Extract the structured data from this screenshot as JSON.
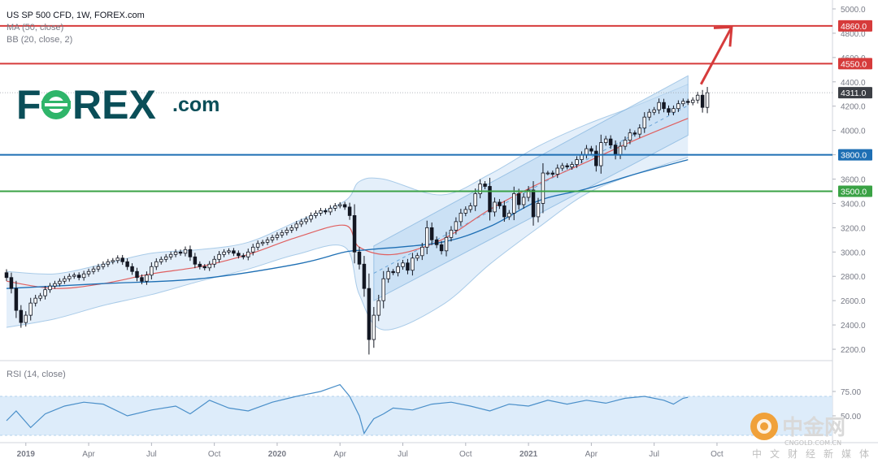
{
  "header": {
    "title": "US SP 500 CFD, 1W, FOREX.com",
    "ma_label": "MA (50, close)",
    "bb_label": "BB (20, close, 2)",
    "rsi_label": "RSI (14, close)"
  },
  "logo": {
    "brand": "F",
    "brand_rest": "REX",
    "suffix": ".com"
  },
  "watermark": {
    "big": "中金网",
    "small": "CNGOLD.COM.CN",
    "tagline": "中文财经新媒体"
  },
  "colors": {
    "bull": "#ffffff",
    "bear": "#131722",
    "ma": "#1e6fb4",
    "bb_basis": "#e06060",
    "bb_fill": "#dbeaf8",
    "channel_fill": "#bcd9f2",
    "resistance": "#d63b3b",
    "level_3800": "#1e6fb4",
    "level_3500": "#3aa245",
    "rsi_line": "#4a8fc9",
    "rsi_band": "#d9eaf9"
  },
  "chart_data": {
    "type": "candlestick",
    "title": "US SP 500 CFD, 1W, FOREX.com",
    "y_axis": {
      "ticks": [
        2200,
        2400,
        2600,
        2800,
        3000,
        3200,
        3400,
        3600,
        3800,
        4000,
        4200,
        4400,
        4600,
        4800,
        5000
      ],
      "range": [
        2120,
        5060
      ]
    },
    "x_axis": {
      "labels": [
        "2019",
        "Apr",
        "Jul",
        "Oct",
        "2020",
        "Apr",
        "Jul",
        "Oct",
        "2021",
        "Apr",
        "Jul",
        "Oct"
      ],
      "start": "2018-12",
      "end": "2021-10"
    },
    "levels": [
      {
        "value": 4860.0,
        "label": "4860.0",
        "role": "target"
      },
      {
        "value": 4550.0,
        "label": "4550.0",
        "role": "resistance"
      },
      {
        "value": 4311.0,
        "label": "4311.0",
        "role": "last"
      },
      {
        "value": 3800.0,
        "label": "3800.0",
        "role": "support"
      },
      {
        "value": 3500.0,
        "label": "3500.0",
        "role": "support"
      }
    ],
    "closes": [
      2790,
      2700,
      2520,
      2420,
      2480,
      2580,
      2620,
      2640,
      2690,
      2720,
      2740,
      2760,
      2780,
      2800,
      2810,
      2790,
      2820,
      2840,
      2860,
      2880,
      2900,
      2920,
      2930,
      2950,
      2920,
      2880,
      2840,
      2790,
      2760,
      2810,
      2880,
      2920,
      2940,
      2960,
      2980,
      3000,
      2990,
      3020,
      2960,
      2900,
      2880,
      2870,
      2900,
      2940,
      2980,
      3000,
      3010,
      2990,
      2970,
      2960,
      3000,
      3040,
      3070,
      3080,
      3100,
      3120,
      3140,
      3160,
      3180,
      3200,
      3230,
      3250,
      3270,
      3300,
      3320,
      3340,
      3330,
      3360,
      3380,
      3390,
      3370,
      3300,
      3000,
      2900,
      2700,
      2280,
      2480,
      2600,
      2780,
      2840,
      2830,
      2880,
      2910,
      2850,
      2950,
      2970,
      3040,
      3200,
      3100,
      3060,
      3010,
      3120,
      3180,
      3250,
      3320,
      3350,
      3380,
      3480,
      3560,
      3540,
      3330,
      3410,
      3380,
      3290,
      3320,
      3480,
      3390,
      3450,
      3510,
      3290,
      3400,
      3650,
      3650,
      3640,
      3690,
      3710,
      3700,
      3720,
      3760,
      3800,
      3850,
      3830,
      3710,
      3900,
      3930,
      3880,
      3800,
      3870,
      3920,
      3980,
      3970,
      4020,
      4110,
      4150,
      4170,
      4230,
      4180,
      4150,
      4180,
      4220,
      4240,
      4230,
      4250,
      4290,
      4190,
      4310
    ],
    "series": [
      {
        "name": "MA (50, close)",
        "x": [
          0,
          20,
          40,
          60,
          70,
          75,
          90,
          100,
          110,
          120,
          130,
          141
        ],
        "values": [
          2700,
          2740,
          2780,
          2900,
          3000,
          3020,
          3080,
          3210,
          3420,
          3520,
          3640,
          3760
        ]
      },
      {
        "name": "BB (20, close, 2) basis",
        "x": [
          0,
          10,
          20,
          30,
          40,
          50,
          60,
          70,
          73,
          80,
          90,
          100,
          110,
          120,
          130,
          141
        ],
        "values": [
          2760,
          2700,
          2740,
          2820,
          2880,
          2980,
          3120,
          3220,
          3040,
          2980,
          3100,
          3350,
          3560,
          3740,
          3920,
          4100
        ]
      },
      {
        "name": "BB upper",
        "x": [
          0,
          10,
          20,
          30,
          40,
          50,
          60,
          70,
          73,
          78,
          90,
          100,
          110,
          120,
          130,
          141
        ],
        "values": [
          2840,
          2820,
          2900,
          2990,
          3020,
          3080,
          3250,
          3420,
          3580,
          3600,
          3470,
          3640,
          3870,
          4050,
          4200,
          4380
        ]
      },
      {
        "name": "BB lower",
        "x": [
          0,
          10,
          20,
          30,
          40,
          50,
          60,
          70,
          73,
          78,
          90,
          100,
          110,
          120,
          130,
          141
        ],
        "values": [
          2380,
          2450,
          2560,
          2650,
          2760,
          2860,
          2980,
          3040,
          2650,
          2360,
          2560,
          2900,
          3200,
          3480,
          3640,
          3780
        ]
      },
      {
        "name": "Channel upper",
        "x": [
          76,
          141
        ],
        "values": [
          3050,
          4450
        ]
      },
      {
        "name": "Channel lower",
        "x": [
          76,
          141
        ],
        "values": [
          2600,
          3960
        ]
      },
      {
        "name": "RSI (14, close)",
        "x": [
          0,
          2,
          5,
          8,
          12,
          16,
          20,
          25,
          30,
          35,
          38,
          42,
          46,
          50,
          55,
          60,
          65,
          69,
          71,
          73,
          74,
          75,
          76,
          78,
          80,
          84,
          88,
          92,
          96,
          100,
          104,
          108,
          112,
          116,
          120,
          124,
          128,
          132,
          136,
          138,
          140,
          141
        ],
        "values": [
          45,
          55,
          38,
          52,
          60,
          64,
          62,
          50,
          56,
          60,
          52,
          66,
          58,
          55,
          64,
          70,
          75,
          82,
          70,
          50,
          32,
          40,
          47,
          52,
          58,
          56,
          62,
          64,
          60,
          55,
          62,
          60,
          66,
          62,
          66,
          63,
          68,
          70,
          66,
          62,
          68,
          69
        ]
      }
    ],
    "rsi": {
      "ticks": [
        50.0,
        75.0
      ],
      "tick_labels": [
        "50.00",
        "75.00"
      ],
      "band": [
        30,
        70
      ]
    },
    "annotation": {
      "type": "arrow",
      "from": [
        141,
        4380
      ],
      "to": [
        147,
        4850
      ]
    }
  }
}
